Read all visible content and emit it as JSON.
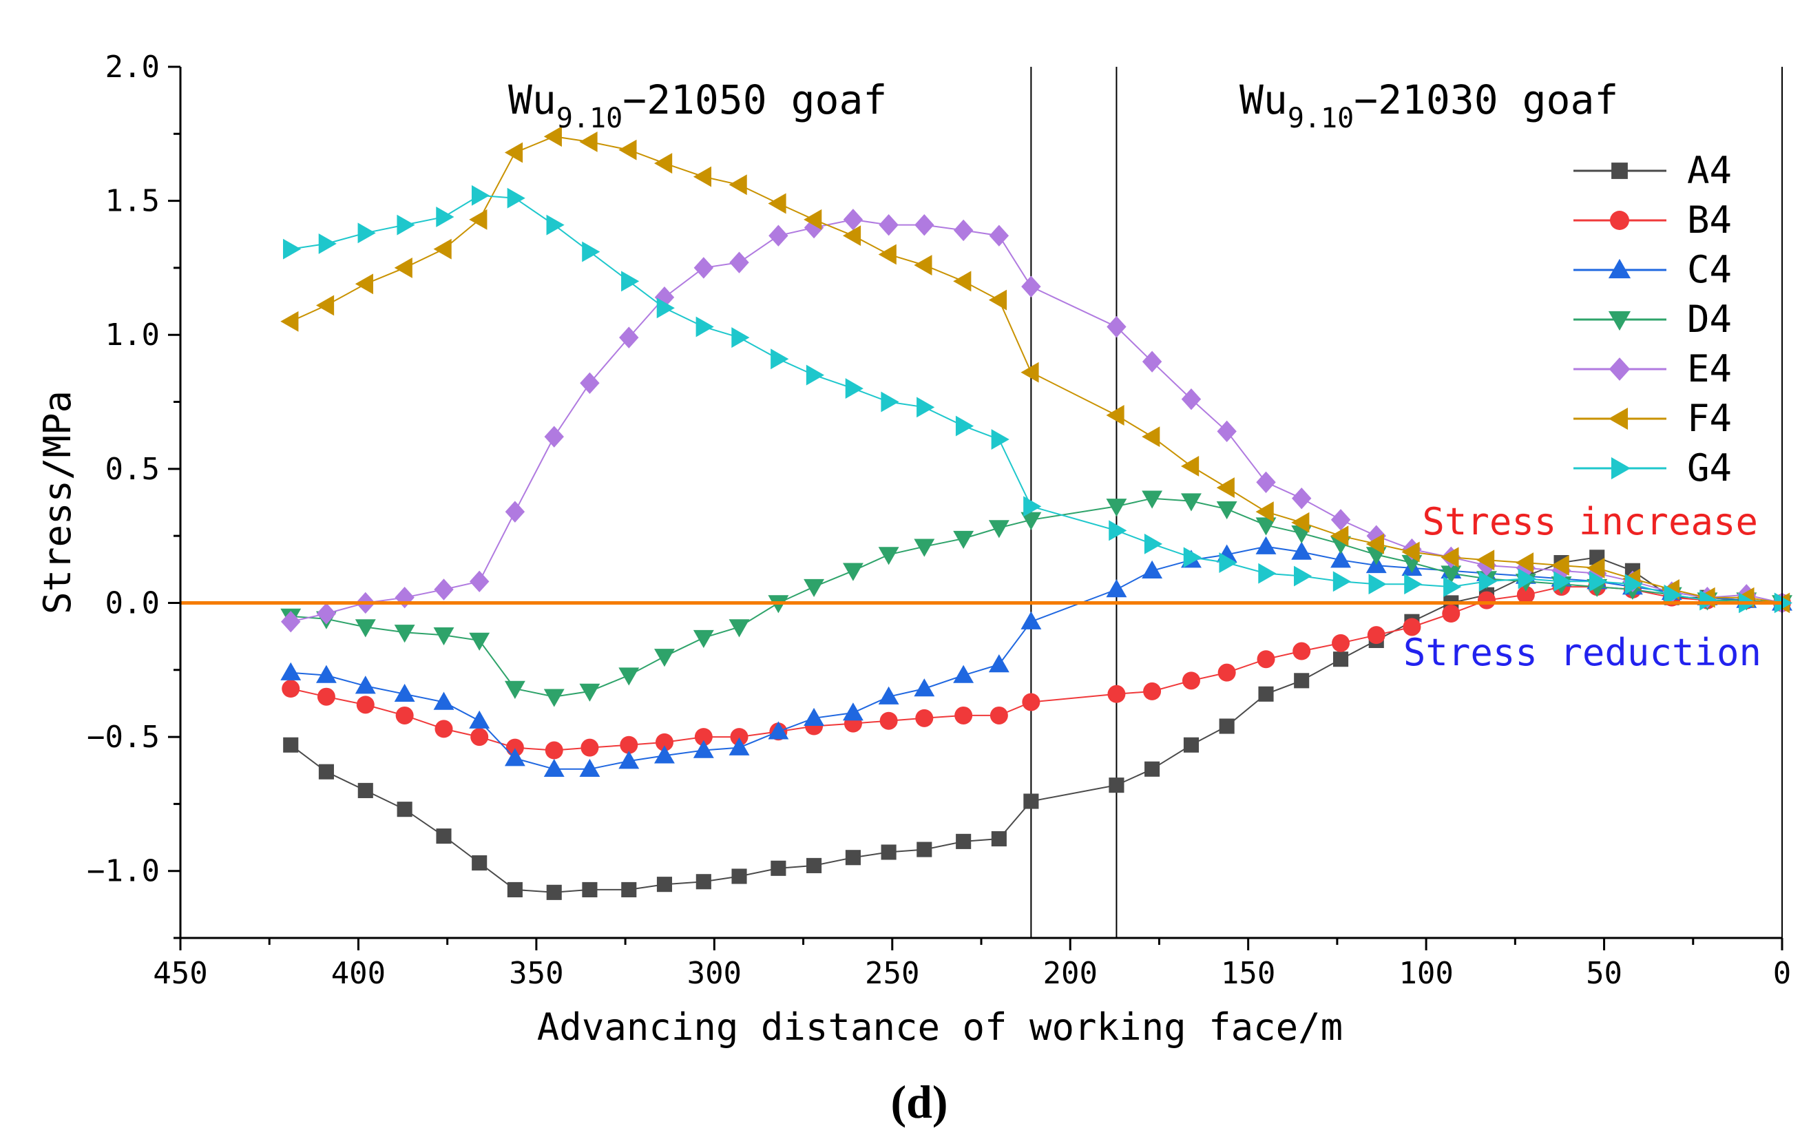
{
  "chart_data": {
    "type": "line",
    "title": "",
    "panel_label": "(d)",
    "xlabel": "Advancing distance of working face/m",
    "ylabel": "Stress/MPa",
    "xlim": [
      450,
      0
    ],
    "ylim": [
      -1.25,
      2.0
    ],
    "x_ticks": [
      450,
      400,
      350,
      300,
      250,
      200,
      150,
      100,
      50,
      0
    ],
    "x_tick_labels": [
      "450",
      "400",
      "350",
      "300",
      "250",
      "200",
      "150",
      "100",
      "50",
      "0"
    ],
    "y_ticks": [
      -1.0,
      -0.5,
      0.0,
      0.5,
      1.0,
      1.5,
      2.0
    ],
    "y_tick_labels": [
      "−1.0",
      "−0.5",
      "0.0",
      "0.5",
      "1.0",
      "1.5",
      "2.0"
    ],
    "legend_position": "right",
    "colors": {
      "A4": "#4a4a4a",
      "B4": "#f0393a",
      "C4": "#1f67e0",
      "D4": "#2ea36a",
      "E4": "#b07ae0",
      "F4": "#c99200",
      "G4": "#1ec7cc",
      "zero_line": "#f57c00",
      "increase_text": "#ee2222",
      "reduction_text": "#2222ee"
    },
    "annotations": {
      "left_goaf": {
        "prefix": "Wu",
        "sub": "9.10",
        "suffix": "−21050 goaf"
      },
      "right_goaf": {
        "prefix": "Wu",
        "sub": "9.10",
        "suffix": "−21030 goaf"
      },
      "increase_label": "Stress increase",
      "reduction_label": "Stress reduction",
      "boundary_lines_x": [
        211,
        187
      ],
      "zero_line_y": 0.0
    },
    "x": [
      419,
      409,
      398,
      387,
      376,
      366,
      356,
      345,
      335,
      324,
      314,
      303,
      293,
      282,
      272,
      261,
      251,
      241,
      230,
      220,
      211,
      187,
      177,
      166,
      156,
      145,
      135,
      124,
      114,
      104,
      93,
      83,
      72,
      62,
      52,
      42,
      31,
      21,
      10,
      0
    ],
    "series": [
      {
        "name": "A4",
        "marker": "square",
        "values": [
          -0.53,
          -0.63,
          -0.7,
          -0.77,
          -0.87,
          -0.97,
          -1.07,
          -1.08,
          -1.07,
          -1.07,
          -1.05,
          -1.04,
          -1.02,
          -0.99,
          -0.98,
          -0.95,
          -0.93,
          -0.92,
          -0.89,
          -0.88,
          -0.74,
          -0.68,
          -0.62,
          -0.53,
          -0.46,
          -0.34,
          -0.29,
          -0.21,
          -0.14,
          -0.07,
          0.0,
          0.03,
          0.1,
          0.15,
          0.17,
          0.12,
          0.02,
          0.02,
          0.01,
          0.0
        ]
      },
      {
        "name": "B4",
        "marker": "circle",
        "values": [
          -0.32,
          -0.35,
          -0.38,
          -0.42,
          -0.47,
          -0.5,
          -0.54,
          -0.55,
          -0.54,
          -0.53,
          -0.52,
          -0.5,
          -0.5,
          -0.48,
          -0.46,
          -0.45,
          -0.44,
          -0.43,
          -0.42,
          -0.42,
          -0.37,
          -0.34,
          -0.33,
          -0.29,
          -0.26,
          -0.21,
          -0.18,
          -0.15,
          -0.12,
          -0.09,
          -0.04,
          0.01,
          0.03,
          0.06,
          0.06,
          0.05,
          0.02,
          0.01,
          0.01,
          0.0
        ]
      },
      {
        "name": "C4",
        "marker": "triangle-up",
        "values": [
          -0.26,
          -0.27,
          -0.31,
          -0.34,
          -0.37,
          -0.44,
          -0.58,
          -0.62,
          -0.62,
          -0.59,
          -0.57,
          -0.55,
          -0.54,
          -0.48,
          -0.43,
          -0.41,
          -0.35,
          -0.32,
          -0.27,
          -0.23,
          -0.07,
          0.05,
          0.12,
          0.16,
          0.18,
          0.21,
          0.19,
          0.16,
          0.14,
          0.13,
          0.12,
          0.11,
          0.1,
          0.09,
          0.08,
          0.06,
          0.04,
          0.02,
          0.01,
          0.0
        ]
      },
      {
        "name": "D4",
        "marker": "triangle-down",
        "values": [
          -0.05,
          -0.06,
          -0.09,
          -0.11,
          -0.12,
          -0.14,
          -0.32,
          -0.35,
          -0.33,
          -0.27,
          -0.2,
          -0.13,
          -0.09,
          0.0,
          0.06,
          0.12,
          0.18,
          0.21,
          0.24,
          0.28,
          0.31,
          0.36,
          0.39,
          0.38,
          0.35,
          0.29,
          0.26,
          0.22,
          0.18,
          0.15,
          0.11,
          0.09,
          0.08,
          0.07,
          0.06,
          0.05,
          0.03,
          0.01,
          0.01,
          0.0
        ]
      },
      {
        "name": "E4",
        "marker": "diamond",
        "values": [
          -0.07,
          -0.04,
          0.0,
          0.02,
          0.05,
          0.08,
          0.34,
          0.62,
          0.82,
          0.99,
          1.14,
          1.25,
          1.27,
          1.37,
          1.4,
          1.43,
          1.41,
          1.41,
          1.39,
          1.37,
          1.18,
          1.03,
          0.9,
          0.76,
          0.64,
          0.45,
          0.39,
          0.31,
          0.25,
          0.2,
          0.17,
          0.14,
          0.13,
          0.12,
          0.11,
          0.08,
          0.04,
          0.02,
          0.03,
          0.0
        ]
      },
      {
        "name": "F4",
        "marker": "triangle-left",
        "values": [
          1.05,
          1.11,
          1.19,
          1.25,
          1.32,
          1.43,
          1.68,
          1.74,
          1.72,
          1.69,
          1.64,
          1.59,
          1.56,
          1.49,
          1.43,
          1.37,
          1.3,
          1.26,
          1.2,
          1.13,
          0.86,
          0.7,
          0.62,
          0.51,
          0.43,
          0.34,
          0.3,
          0.25,
          0.22,
          0.19,
          0.17,
          0.16,
          0.15,
          0.14,
          0.13,
          0.09,
          0.05,
          0.02,
          0.02,
          0.0
        ]
      },
      {
        "name": "G4",
        "marker": "triangle-right",
        "values": [
          1.32,
          1.34,
          1.38,
          1.41,
          1.44,
          1.52,
          1.51,
          1.41,
          1.31,
          1.2,
          1.1,
          1.03,
          0.99,
          0.91,
          0.85,
          0.8,
          0.75,
          0.73,
          0.66,
          0.61,
          0.36,
          0.27,
          0.22,
          0.17,
          0.15,
          0.11,
          0.1,
          0.08,
          0.07,
          0.07,
          0.06,
          0.08,
          0.09,
          0.08,
          0.08,
          0.07,
          0.03,
          0.01,
          0.0,
          0.0
        ]
      }
    ]
  }
}
